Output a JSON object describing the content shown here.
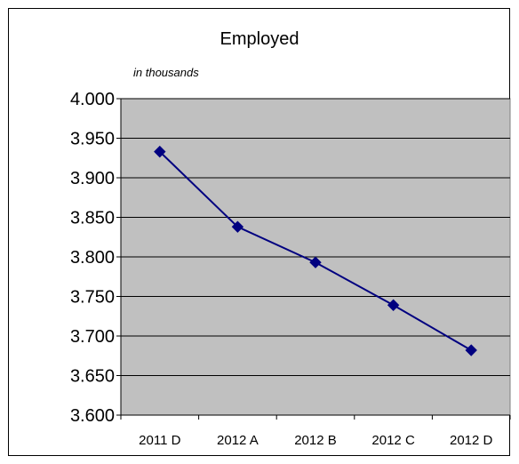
{
  "chart_data": {
    "type": "line",
    "title": "Employed",
    "subtitle": "in thousands",
    "categories": [
      "2011 D",
      "2012 A",
      "2012 B",
      "2012 C",
      "2012 D"
    ],
    "series": [
      {
        "values": [
          3933,
          3838,
          3793,
          3739,
          3682
        ]
      }
    ],
    "ylim": [
      3600,
      4000
    ],
    "yticks": [
      3600,
      3650,
      3700,
      3750,
      3800,
      3850,
      3900,
      3950,
      4000
    ],
    "ytick_labels": [
      "3.600",
      "3.650",
      "3.700",
      "3.750",
      "3.800",
      "3.850",
      "3.900",
      "3.950",
      "4.000"
    ],
    "grid": true,
    "legend": "none",
    "colors": {
      "plot_background": "#c0c0c0",
      "line": "#000080",
      "marker": "#000080"
    }
  }
}
